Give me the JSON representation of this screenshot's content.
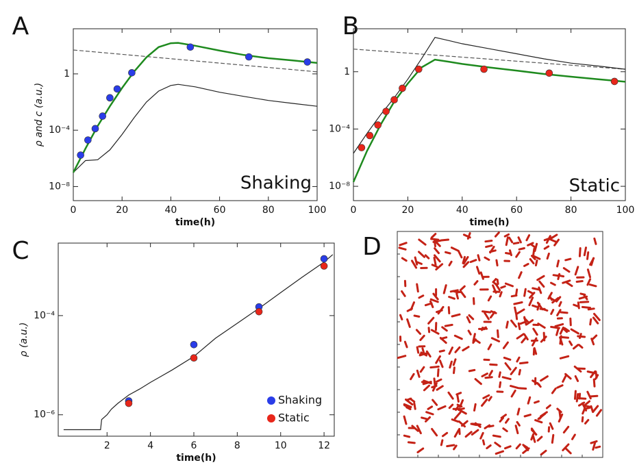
{
  "chart_data": [
    {
      "type": "line",
      "label": "A",
      "ylabel": "ρ and c (a.u.)",
      "xlabel": "time(h)",
      "ylog": true,
      "xlim": [
        0,
        100
      ],
      "xticks": [
        0,
        20,
        40,
        60,
        80,
        100
      ],
      "ylim": [
        1e-09,
        1600
      ],
      "yticks": [
        {
          "value": 1e-08,
          "label": "10⁻⁸"
        },
        {
          "value": 0.0001,
          "label": "10⁻⁴"
        },
        1
      ],
      "annotation": {
        "text": "Shaking",
        "color": "#2a3de8"
      },
      "series": [
        {
          "kind": "line",
          "color": "#555555",
          "style": "dashed",
          "x": [
            0,
            100
          ],
          "values": [
            50,
            1.4
          ]
        },
        {
          "kind": "line",
          "color": "#222222",
          "style": "solid",
          "x": [
            0,
            5,
            10,
            15,
            20,
            25,
            30,
            35,
            40,
            43,
            50,
            60,
            70,
            80,
            90,
            100
          ],
          "values": [
            1e-07,
            7e-07,
            8e-07,
            4e-06,
            5e-05,
            0.0008,
            0.01,
            0.06,
            0.15,
            0.18,
            0.12,
            0.05,
            0.025,
            0.013,
            0.008,
            0.005
          ]
        },
        {
          "kind": "line",
          "color": "#1e8a1e",
          "style": "solid",
          "x": [
            0,
            5,
            10,
            15,
            20,
            25,
            30,
            35,
            40,
            43,
            50,
            60,
            70,
            80,
            90,
            100
          ],
          "values": [
            1e-07,
            5e-06,
            0.0002,
            0.005,
            0.1,
            1.5,
            15,
            80,
            150,
            160,
            100,
            45,
            22,
            13,
            9,
            6
          ]
        },
        {
          "kind": "points",
          "color": "#2a3de8",
          "x": [
            3,
            6,
            9,
            12,
            15,
            18,
            24,
            48,
            72,
            96
          ],
          "values": [
            1.7e-06,
            2e-05,
            0.00013,
            0.001,
            0.02,
            0.085,
            1.2,
            80,
            16,
            7
          ]
        }
      ]
    },
    {
      "type": "line",
      "label": "B",
      "xlabel": "time(h)",
      "ylog": true,
      "xlim": [
        0,
        100
      ],
      "xticks": [
        0,
        20,
        40,
        60,
        80,
        100
      ],
      "ylim": [
        1e-09,
        1000
      ],
      "yticks": [
        {
          "value": 1e-08,
          "label": "10⁻⁸"
        },
        {
          "value": 0.0001,
          "label": "10⁻⁴"
        },
        1
      ],
      "annotation": {
        "text": "Static",
        "color": "#e8261a"
      },
      "series": [
        {
          "kind": "line",
          "color": "#555555",
          "style": "dashed",
          "x": [
            0,
            100
          ],
          "values": [
            38,
            1.5
          ]
        },
        {
          "kind": "line",
          "color": "#222222",
          "style": "solid",
          "x": [
            0,
            5,
            10,
            15,
            20,
            25,
            30,
            35,
            40,
            50,
            60,
            70,
            80,
            90,
            100
          ],
          "values": [
            2e-06,
            5e-05,
            0.001,
            0.015,
            0.3,
            8,
            250,
            150,
            90,
            40,
            18,
            8,
            4,
            2.5,
            1.5
          ]
        },
        {
          "kind": "line",
          "color": "#1e8a1e",
          "style": "solid",
          "x": [
            0,
            5,
            10,
            15,
            20,
            25,
            30,
            35,
            40,
            50,
            60,
            70,
            80,
            90,
            100
          ],
          "values": [
            2e-08,
            3e-06,
            0.0002,
            0.008,
            0.15,
            2,
            7,
            5,
            3.5,
            2,
            1.2,
            0.7,
            0.45,
            0.3,
            0.2
          ]
        },
        {
          "kind": "points",
          "color": "#e8261a",
          "x": [
            3,
            6,
            9,
            12,
            15,
            18,
            24,
            48,
            72,
            96
          ],
          "values": [
            5e-06,
            3.5e-05,
            0.00019,
            0.0017,
            0.011,
            0.07,
            1.5,
            1.5,
            0.8,
            0.21
          ]
        }
      ]
    },
    {
      "type": "line",
      "label": "C",
      "ylabel": "ρ (a.u.)",
      "xlabel": "time(h)",
      "ylog": true,
      "xlim": [
        -0.25,
        12.47
      ],
      "xticks": [
        2,
        4,
        6,
        8,
        10,
        12
      ],
      "ylim": [
        3.7e-07,
        0.0029
      ],
      "yticks": [
        {
          "value": 1e-06,
          "label": "10⁻⁶"
        },
        {
          "value": 0.0001,
          "label": "10⁻⁴"
        }
      ],
      "legend": "lower right",
      "series": [
        {
          "kind": "line",
          "color": "#222222",
          "style": "solid",
          "x": [
            0,
            1.7,
            1.75,
            2.0,
            2.2,
            2.5,
            3,
            3.5,
            4,
            4.5,
            5,
            6,
            7,
            8,
            9,
            10,
            11,
            12,
            12.4
          ],
          "values": [
            5e-07,
            5e-07,
            8e-07,
            1e-06,
            1.3e-06,
            1.7e-06,
            2.5e-06,
            3.3e-06,
            4.5e-06,
            6e-06,
            8e-06,
            1.5e-05,
            3.5e-05,
            7e-05,
            0.00014,
            0.00029,
            0.0006,
            0.0012,
            0.0017
          ]
        },
        {
          "kind": "points",
          "name": "Shaking",
          "color": "#2a3de8",
          "x": [
            3,
            6,
            9,
            12
          ],
          "values": [
            1.9e-06,
            2.6e-05,
            0.00015,
            0.0014
          ]
        },
        {
          "kind": "points",
          "name": "Static",
          "color": "#e8261a",
          "x": [
            3,
            6,
            9,
            12
          ],
          "values": [
            1.7e-06,
            1.4e-05,
            0.00012,
            0.001
          ]
        }
      ]
    }
  ],
  "panel_d": {
    "label": "D"
  }
}
